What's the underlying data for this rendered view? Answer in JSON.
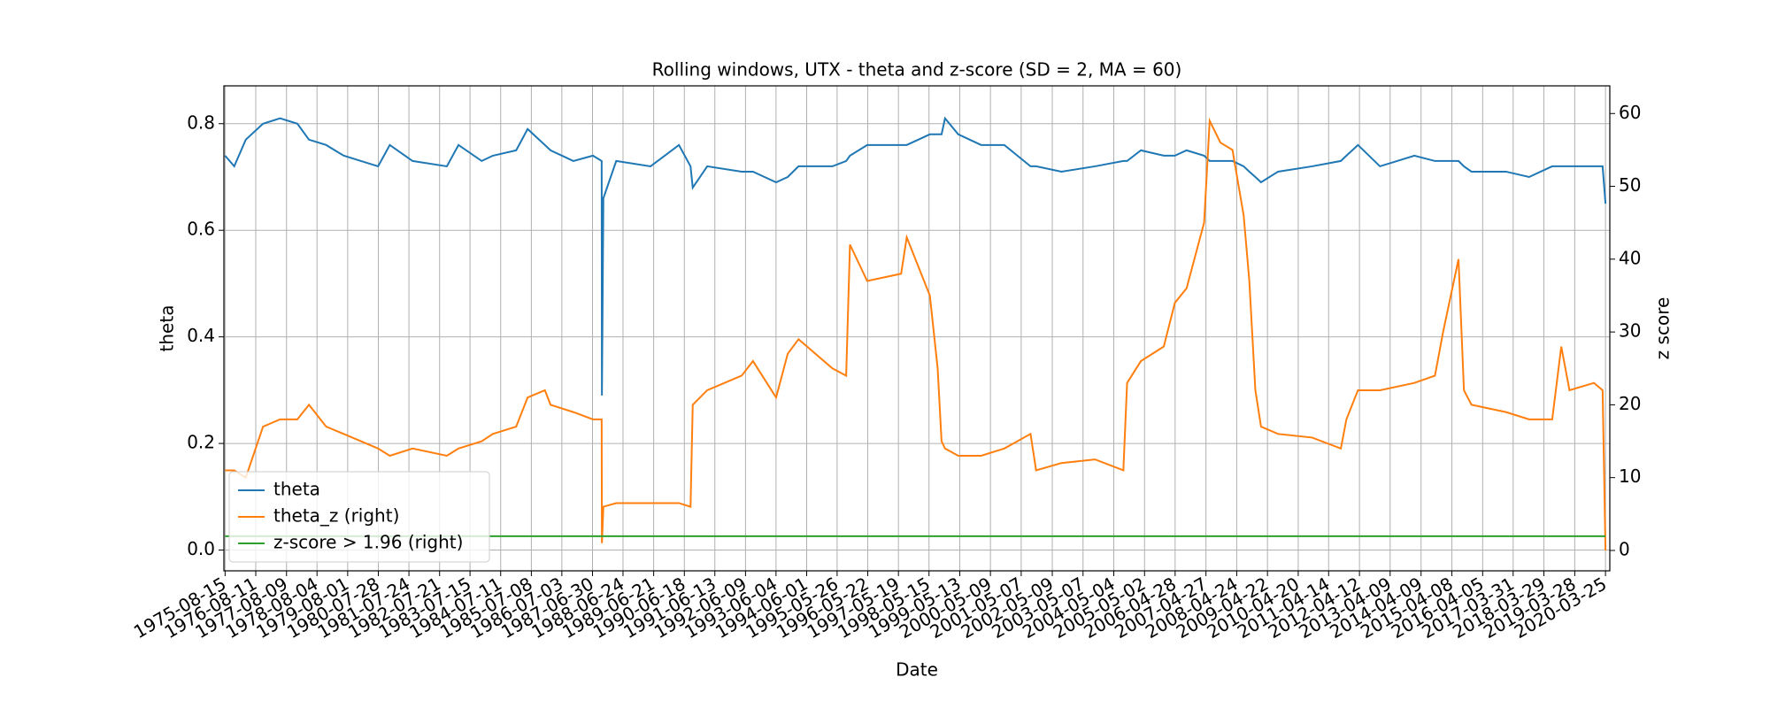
{
  "chart_data": {
    "type": "line",
    "title": "Rolling windows, UTX - theta and z-score (SD = 2, MA = 60)",
    "x_label": "Date",
    "y_label": "theta",
    "y2_label": "z score",
    "x": [
      "1975-08-15",
      "1975-12-01",
      "1976-04-15",
      "1976-11-05",
      "1977-05-25",
      "1977-12-15",
      "1978-05-01",
      "1978-11-20",
      "1979-06-15",
      "1980-01-05",
      "1980-07-25",
      "1980-12-10",
      "1981-09-05",
      "1982-10-15",
      "1983-03-01",
      "1983-11-30",
      "1984-04-10",
      "1985-01-10",
      "1985-05-25",
      "1985-12-15",
      "1986-02-20",
      "1986-11-15",
      "1987-07-05",
      "1987-10-16",
      "1987-10-19",
      "1987-11-05",
      "1988-04-05",
      "1989-05-15",
      "1990-04-15",
      "1990-08-30",
      "1990-09-25",
      "1991-03-15",
      "1992-04-25",
      "1992-09-05",
      "1993-06-05",
      "1993-10-20",
      "1994-02-25",
      "1995-04-01",
      "1995-09-10",
      "1995-10-25",
      "1996-05-15",
      "1997-06-20",
      "1997-08-25",
      "1998-05-25",
      "1998-08-25",
      "1998-10-10",
      "1998-11-20",
      "1999-04-25",
      "2000-01-20",
      "2000-10-20",
      "2001-08-25",
      "2001-10-30",
      "2002-08-25",
      "2003-09-25",
      "2004-08-25",
      "2004-10-08",
      "2005-03-20",
      "2005-12-15",
      "2006-04-25",
      "2006-09-10",
      "2007-04-05",
      "2007-06-10",
      "2007-10-15",
      "2008-03-05",
      "2008-07-15",
      "2008-09-20",
      "2008-11-30",
      "2009-02-05",
      "2009-08-25",
      "2010-10-01",
      "2011-09-05",
      "2011-11-10",
      "2012-03-25",
      "2012-12-10",
      "2014-01-20",
      "2014-09-20",
      "2014-12-25",
      "2015-06-25",
      "2015-08-28",
      "2015-11-25",
      "2017-01-05",
      "2017-10-05",
      "2018-07-05",
      "2018-10-20",
      "2019-01-25",
      "2019-11-10",
      "2020-02-20",
      "2020-03-25"
    ],
    "series": [
      {
        "name": "theta",
        "color": "#1f77b4",
        "axis": "y",
        "values": [
          0.74,
          0.72,
          0.77,
          0.8,
          0.81,
          0.8,
          0.77,
          0.76,
          0.74,
          0.73,
          0.72,
          0.76,
          0.73,
          0.72,
          0.76,
          0.73,
          0.74,
          0.75,
          0.79,
          0.76,
          0.75,
          0.73,
          0.74,
          0.73,
          0.29,
          0.66,
          0.73,
          0.72,
          0.76,
          0.72,
          0.68,
          0.72,
          0.71,
          0.71,
          0.69,
          0.7,
          0.72,
          0.72,
          0.73,
          0.74,
          0.76,
          0.76,
          0.76,
          0.78,
          0.78,
          0.78,
          0.81,
          0.78,
          0.76,
          0.76,
          0.72,
          0.72,
          0.71,
          0.72,
          0.73,
          0.73,
          0.75,
          0.74,
          0.74,
          0.75,
          0.74,
          0.73,
          0.73,
          0.73,
          0.72,
          0.71,
          0.7,
          0.69,
          0.71,
          0.72,
          0.73,
          0.74,
          0.76,
          0.72,
          0.74,
          0.73,
          0.73,
          0.73,
          0.72,
          0.71,
          0.71,
          0.7,
          0.72,
          0.72,
          0.72,
          0.72,
          0.72,
          0.65
        ]
      },
      {
        "name": "theta_z (right)",
        "color": "#ff7f0e",
        "axis": "y2",
        "values": [
          11,
          11,
          10,
          17,
          18,
          18,
          20,
          17,
          16,
          15,
          14,
          13,
          14,
          13,
          14,
          15,
          16,
          17,
          21,
          22,
          20,
          19,
          18,
          18,
          1,
          6,
          6.5,
          6.5,
          6.5,
          6,
          20,
          22,
          24,
          26,
          21,
          27,
          29,
          25,
          24,
          42,
          37,
          38,
          43,
          35,
          25,
          15,
          14,
          13,
          13,
          14,
          16,
          11,
          12,
          12.5,
          11,
          23,
          26,
          28,
          34,
          36,
          45,
          59,
          56,
          55,
          46,
          37,
          22,
          17,
          16,
          15.5,
          14,
          18,
          22,
          22,
          23,
          24,
          30,
          40,
          22,
          20,
          19,
          18,
          18,
          28,
          22,
          23,
          22,
          0
        ]
      },
      {
        "name": "z-score > 1.96 (right)",
        "color": "#2ca02c",
        "axis": "y2",
        "x": [
          "1975-08-15",
          "2020-03-25"
        ],
        "values": [
          1.96,
          1.96
        ]
      }
    ],
    "xlim": [
      "1975-08-01",
      "2020-05-15"
    ],
    "xticks": [
      "1975-08-15",
      "1976-08-11",
      "1977-08-09",
      "1978-08-04",
      "1979-08-01",
      "1980-07-28",
      "1981-07-24",
      "1982-07-21",
      "1983-07-15",
      "1984-07-11",
      "1985-07-08",
      "1986-07-03",
      "1987-06-30",
      "1988-06-24",
      "1989-06-21",
      "1990-06-18",
      "1991-06-13",
      "1992-06-09",
      "1993-06-04",
      "1994-06-01",
      "1995-05-26",
      "1996-05-22",
      "1997-05-19",
      "1998-05-15",
      "1999-05-13",
      "2000-05-09",
      "2001-05-07",
      "2002-05-09",
      "2003-05-07",
      "2004-05-04",
      "2005-05-02",
      "2006-04-28",
      "2007-04-27",
      "2008-04-24",
      "2009-04-22",
      "2010-04-20",
      "2011-04-14",
      "2012-04-12",
      "2013-04-09",
      "2014-04-09",
      "2015-04-08",
      "2016-04-05",
      "2017-03-31",
      "2018-03-29",
      "2019-03-28",
      "2020-03-25"
    ],
    "ylim": [
      -0.039,
      0.871
    ],
    "yticks": [
      {
        "value": 0,
        "label": "0.0"
      },
      0.2,
      0.4,
      0.6,
      0.8
    ],
    "y2lim": [
      -2.8,
      63.8
    ],
    "y2ticks": [
      0,
      10,
      20,
      30,
      40,
      50,
      60
    ],
    "grid": true,
    "legend": "lower left"
  }
}
